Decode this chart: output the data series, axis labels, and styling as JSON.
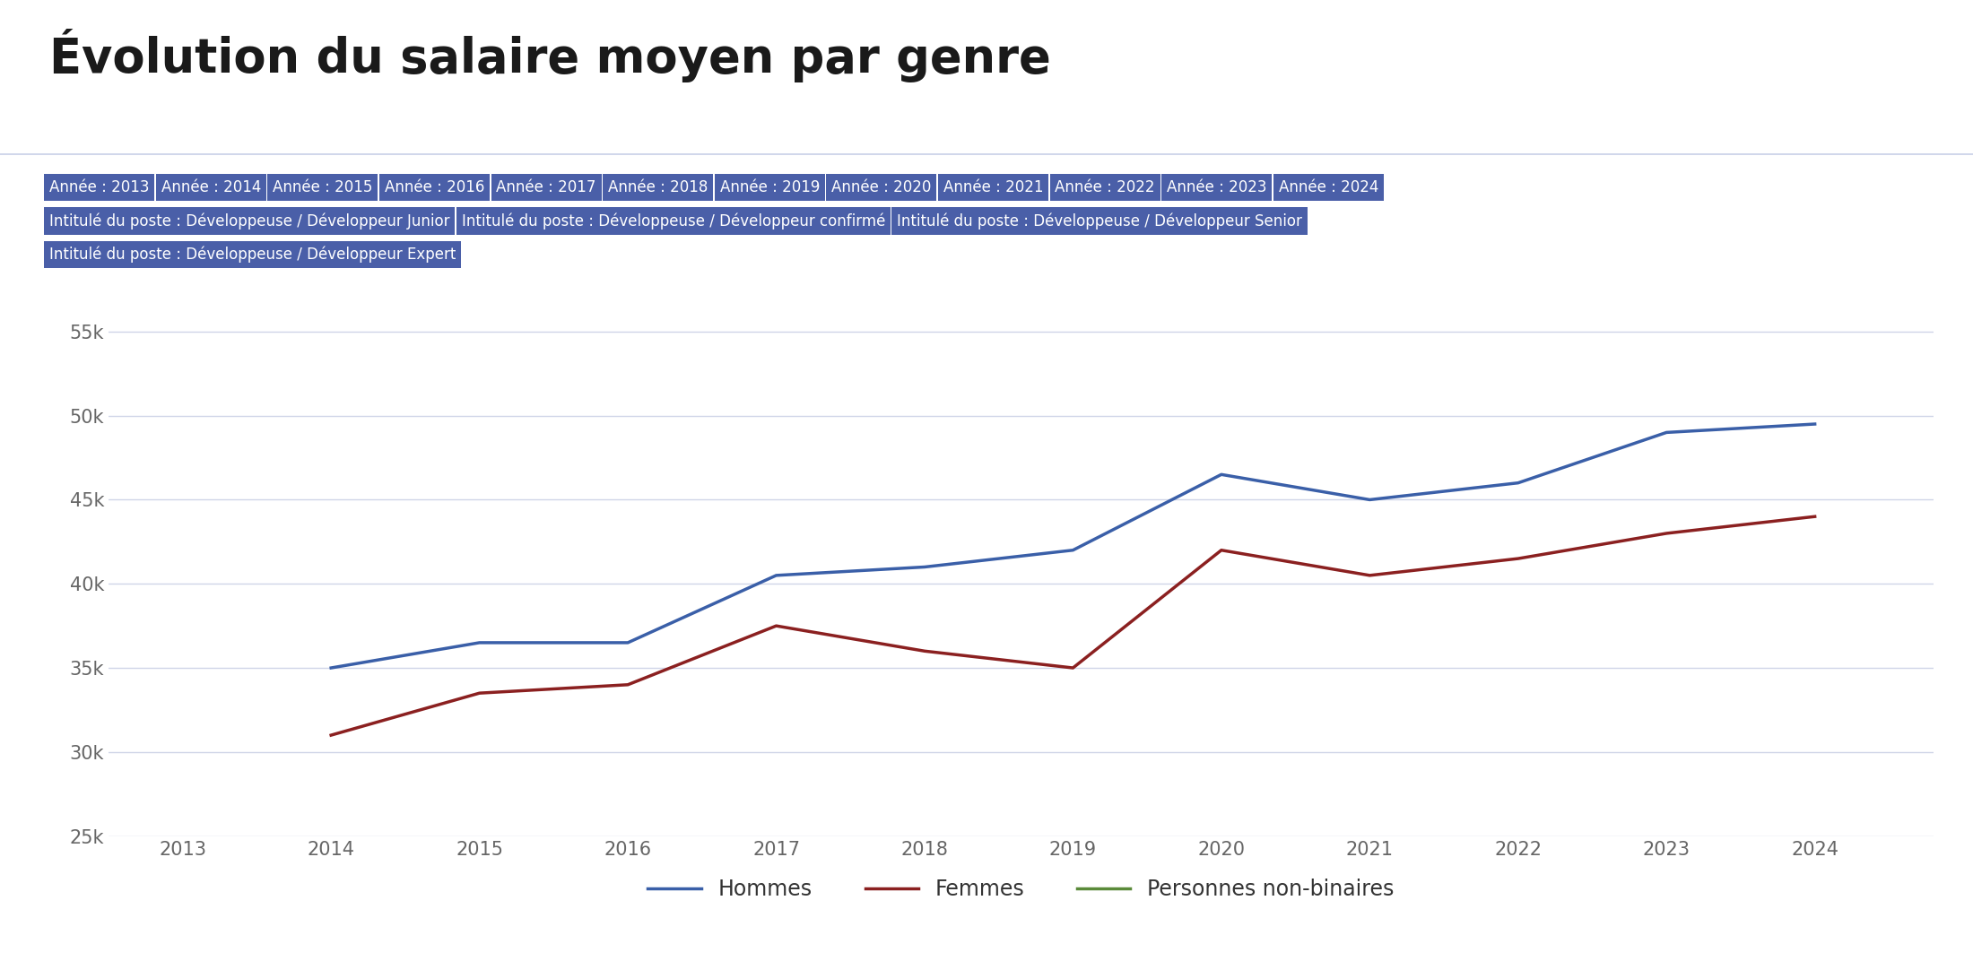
{
  "title": "Évolution du salaire moyen par genre",
  "years": [
    2013,
    2014,
    2015,
    2016,
    2017,
    2018,
    2019,
    2020,
    2021,
    2022,
    2023,
    2024
  ],
  "hommes": [
    null,
    35000,
    36500,
    36500,
    40500,
    41000,
    42000,
    46500,
    45000,
    46000,
    49000,
    49500
  ],
  "femmes": [
    null,
    31000,
    33500,
    34000,
    37500,
    36000,
    35000,
    42000,
    40500,
    41500,
    43000,
    44000
  ],
  "non_binaires": [
    null,
    null,
    null,
    null,
    null,
    null,
    null,
    null,
    null,
    null,
    null,
    null
  ],
  "hommes_color": "#3a5fa8",
  "femmes_color": "#8b2020",
  "non_binaires_color": "#5a8a3a",
  "background_color": "#ffffff",
  "ylim": [
    25000,
    57000
  ],
  "yticks": [
    25000,
    30000,
    35000,
    40000,
    45000,
    50000,
    55000
  ],
  "ytick_labels": [
    "25k",
    "30k",
    "35k",
    "40k",
    "45k",
    "50k",
    "55k"
  ],
  "grid_color": "#d0d5e8",
  "filter_row1": [
    "Année : 2013",
    "Année : 2014",
    "Année : 2015",
    "Année : 2016",
    "Année : 2017",
    "Année : 2018",
    "Année : 2019",
    "Année : 2020",
    "Année : 2021",
    "Année : 2022",
    "Année : 2023",
    "Année : 2024"
  ],
  "filter_row2": [
    "Intitulé du poste : Développeuse / Développeur Junior",
    "Intitulé du poste : Développeuse / Développeur confirmé",
    "Intitulé du poste : Développeuse / Développeur Senior"
  ],
  "filter_row3": [
    "Intitulé du poste : Développeuse / Développeur Expert"
  ],
  "button_color": "#4a5fa8",
  "button_text_color": "#ffffff",
  "legend_labels": [
    "Hommes",
    "Femmes",
    "Personnes non-binaires"
  ],
  "title_fontsize": 38,
  "axis_fontsize": 15,
  "legend_fontsize": 17,
  "button_fontsize": 12
}
